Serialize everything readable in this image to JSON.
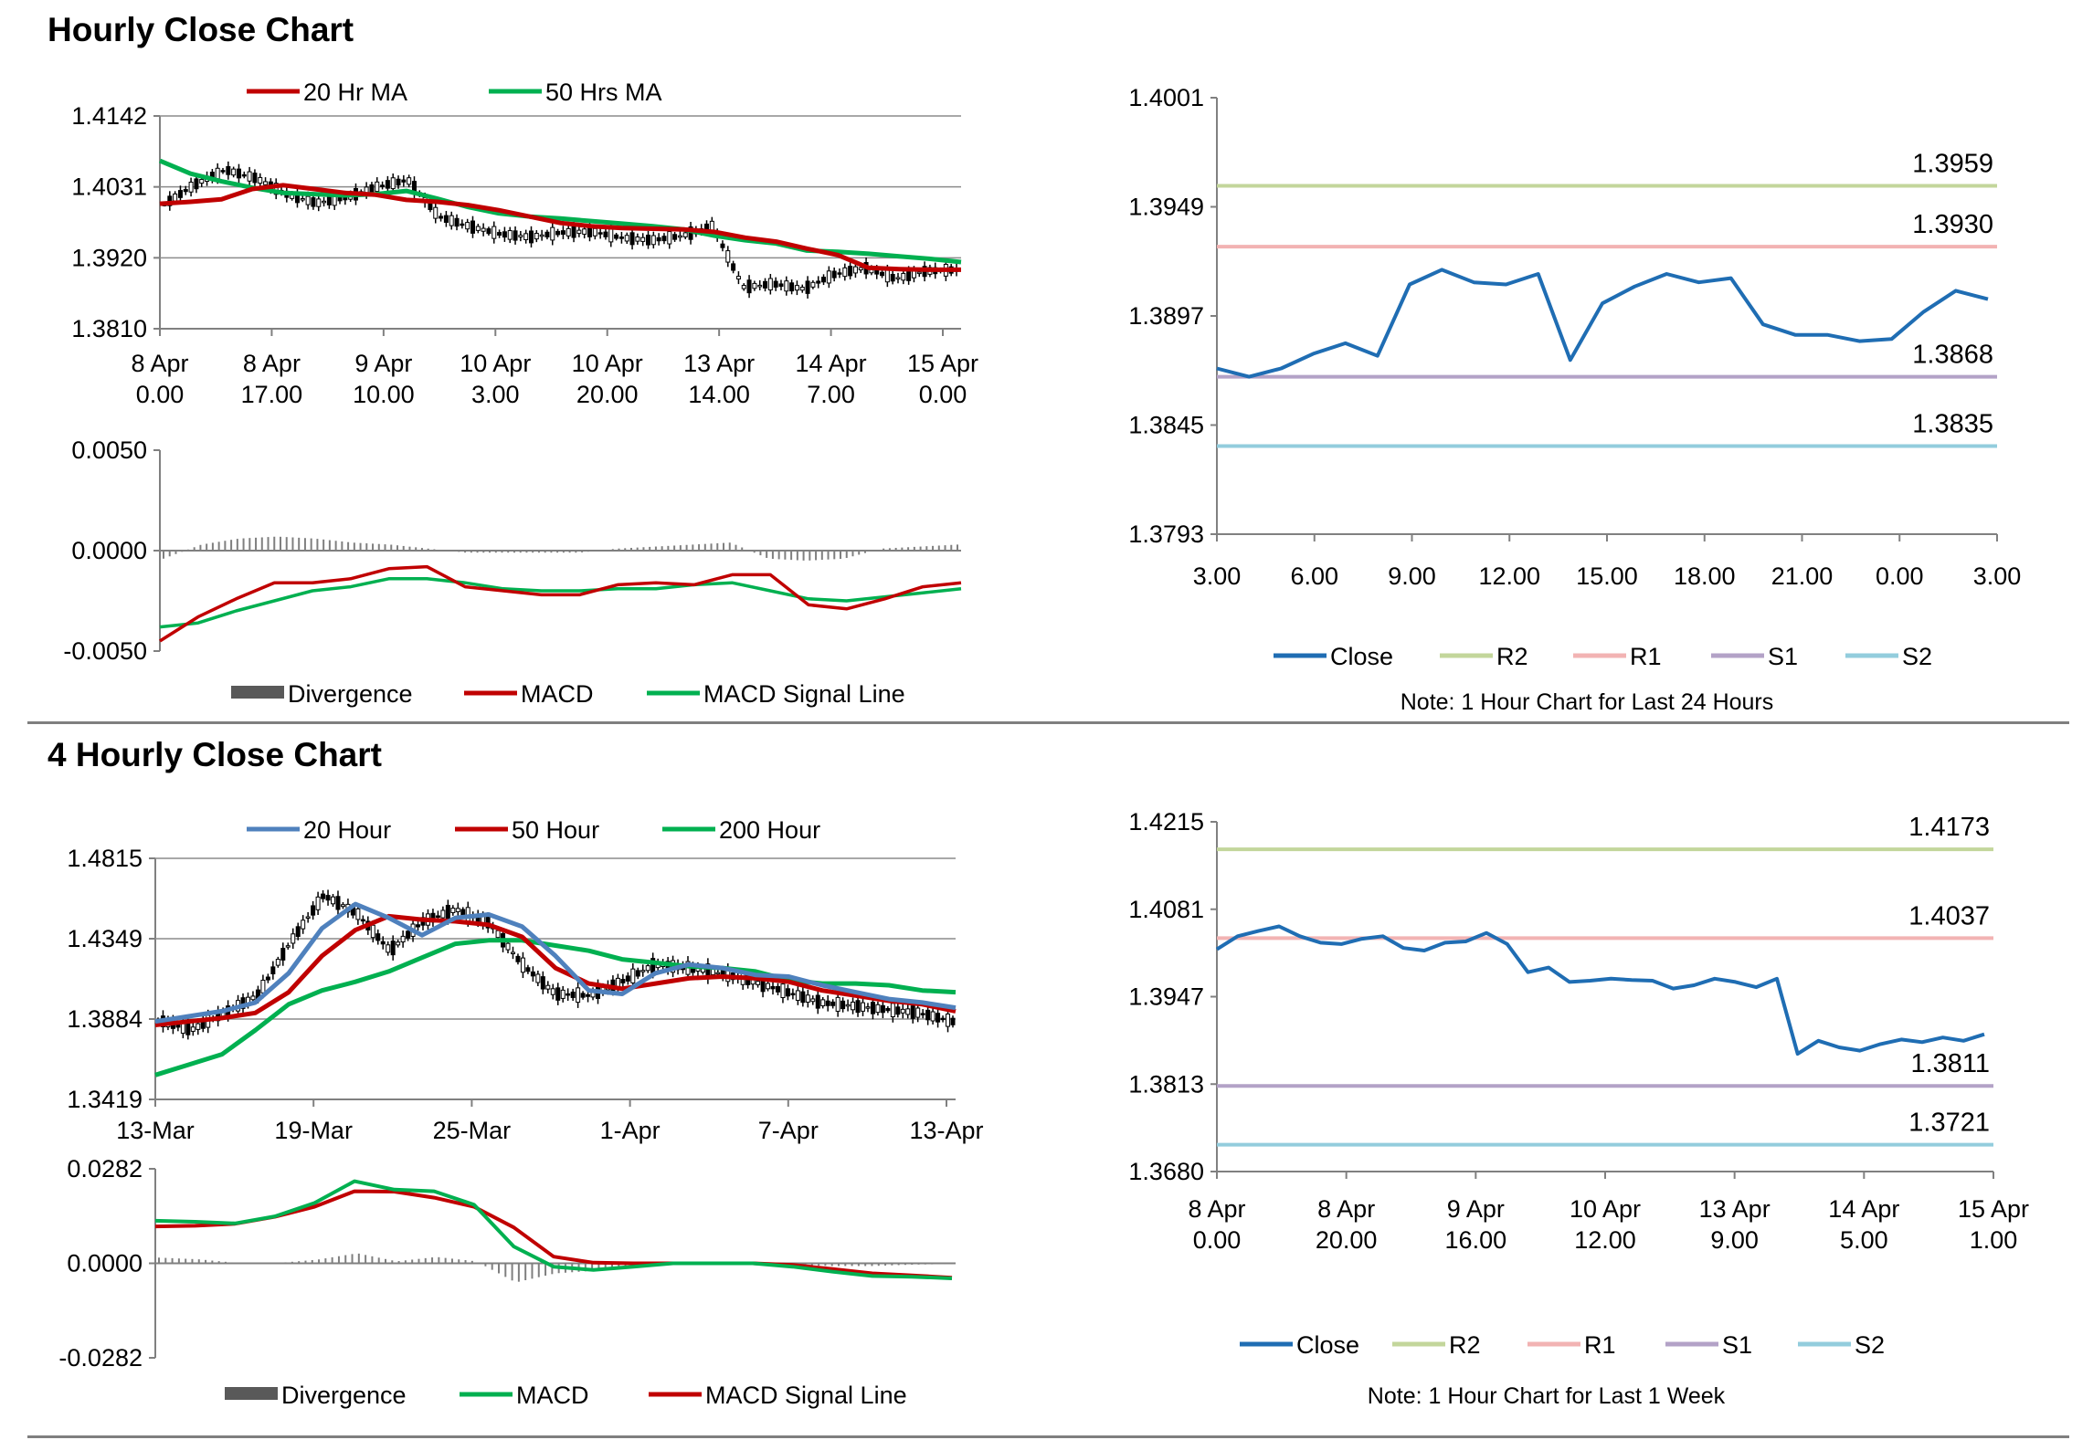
{
  "sections": {
    "hourly_title": "Hourly Close Chart",
    "four_hourly_title": "4 Hourly Close Chart"
  },
  "colors": {
    "red": "#c00000",
    "green": "#00b050",
    "blue": "#4f81bd",
    "close": "#1f6db3",
    "gray": "#7f7f7f",
    "r2": "#c3d69b",
    "r1": "#f2b3b3",
    "s1": "#b3a2c7",
    "s2": "#93cddd"
  },
  "chart_data": [
    {
      "id": "hourly-price",
      "type": "candlestick",
      "title": "",
      "yticks": [
        "1.4142",
        "1.4031",
        "1.3920",
        "1.3810"
      ],
      "ylim": [
        1.381,
        1.4142
      ],
      "xticks": [
        [
          "8 Apr",
          "0.00"
        ],
        [
          "8 Apr",
          "17.00"
        ],
        [
          "9 Apr",
          "10.00"
        ],
        [
          "10 Apr",
          "3.00"
        ],
        [
          "10 Apr",
          "20.00"
        ],
        [
          "13 Apr",
          "14.00"
        ],
        [
          "14 Apr",
          "7.00"
        ],
        [
          "15 Apr",
          "0.00"
        ]
      ],
      "legend": [
        "20 Hr MA",
        "50 Hrs MA"
      ],
      "series": [
        {
          "name": "20 Hr MA",
          "values": [
            1.4005,
            1.4008,
            1.4012,
            1.4028,
            1.4034,
            1.4028,
            1.4022,
            1.4019,
            1.4011,
            1.4008,
            1.4003,
            1.3995,
            1.3985,
            1.3975,
            1.397,
            1.3967,
            1.3966,
            1.3965,
            1.3961,
            1.3952,
            1.3946,
            1.3935,
            1.3925,
            1.3905,
            1.3903,
            1.3902,
            1.3902
          ]
        },
        {
          "name": "50 Hrs MA",
          "values": [
            1.4072,
            1.4052,
            1.404,
            1.403,
            1.4022,
            1.402,
            1.4018,
            1.402,
            1.4025,
            1.4013,
            1.4,
            1.399,
            1.3985,
            1.3982,
            1.3978,
            1.3974,
            1.397,
            1.3965,
            1.3955,
            1.3948,
            1.3943,
            1.3932,
            1.393,
            1.3927,
            1.3923,
            1.3919,
            1.3914
          ]
        },
        {
          "name": "Close",
          "values": [
            1.4004,
            1.4035,
            1.4058,
            1.4045,
            1.402,
            1.4006,
            1.4015,
            1.4032,
            1.4042,
            1.3985,
            1.397,
            1.3958,
            1.3953,
            1.396,
            1.3962,
            1.3952,
            1.3948,
            1.3955,
            1.397,
            1.3875,
            1.388,
            1.3872,
            1.3895,
            1.3905,
            1.3888,
            1.39,
            1.3902
          ]
        }
      ]
    },
    {
      "id": "hourly-macd",
      "type": "line",
      "yticks": [
        "0.0050",
        "0.0000",
        "-0.0050"
      ],
      "ylim": [
        -0.005,
        0.005
      ],
      "legend": [
        "Divergence",
        "MACD",
        "MACD Signal Line"
      ],
      "series": [
        {
          "name": "MACD",
          "values": [
            -0.0045,
            -0.0033,
            -0.0024,
            -0.0016,
            -0.0016,
            -0.0014,
            -0.0009,
            -0.0008,
            -0.0018,
            -0.002,
            -0.0022,
            -0.0022,
            -0.0017,
            -0.0016,
            -0.0017,
            -0.0012,
            -0.0012,
            -0.0027,
            -0.0029,
            -0.0024,
            -0.0018,
            -0.0016
          ]
        },
        {
          "name": "MACD Signal Line",
          "values": [
            -0.0038,
            -0.0036,
            -0.003,
            -0.0025,
            -0.002,
            -0.0018,
            -0.0014,
            -0.0014,
            -0.0016,
            -0.0019,
            -0.002,
            -0.002,
            -0.0019,
            -0.0019,
            -0.0017,
            -0.0016,
            -0.002,
            -0.0024,
            -0.0025,
            -0.0023,
            -0.0021,
            -0.0019
          ]
        },
        {
          "name": "Divergence",
          "values": [
            -0.0004,
            0.0003,
            0.0006,
            0.0007,
            0.0006,
            0.0004,
            0.0003,
            0.0001,
            -0.0001,
            -0.0001,
            -0.0001,
            -0.0001,
            0.0001,
            0.0002,
            0.0003,
            0.0004,
            -0.0004,
            -0.0005,
            -0.0004,
            0.0001,
            0.0002,
            0.0003
          ]
        }
      ]
    },
    {
      "id": "hourly-close-24h",
      "type": "line",
      "yticks": [
        "1.4001",
        "1.3949",
        "1.3897",
        "1.3845",
        "1.3793"
      ],
      "ylim": [
        1.3793,
        1.4001
      ],
      "xticks": [
        "3.00",
        "6.00",
        "9.00",
        "12.00",
        "15.00",
        "18.00",
        "21.00",
        "0.00",
        "3.00"
      ],
      "x": [
        3,
        4,
        5,
        6,
        7,
        8,
        9,
        10,
        11,
        12,
        13,
        14,
        15,
        16,
        17,
        18,
        19,
        20,
        21,
        22,
        23,
        24,
        25,
        26,
        27
      ],
      "series": [
        {
          "name": "Close",
          "values": [
            1.3872,
            1.3868,
            1.3872,
            1.3879,
            1.3884,
            1.3878,
            1.3912,
            1.3919,
            1.3913,
            1.3912,
            1.3917,
            1.3876,
            1.3903,
            1.3911,
            1.3917,
            1.3913,
            1.3915,
            1.3893,
            1.3888,
            1.3888,
            1.3885,
            1.3886,
            1.3899,
            1.3909,
            1.3905
          ]
        }
      ],
      "levels": [
        {
          "name": "R2",
          "value": 1.3959,
          "label": "1.3959"
        },
        {
          "name": "R1",
          "value": 1.393,
          "label": "1.3930"
        },
        {
          "name": "S1",
          "value": 1.3868,
          "label": "1.3868"
        },
        {
          "name": "S2",
          "value": 1.3835,
          "label": "1.3835"
        }
      ],
      "legend": [
        "Close",
        "R2",
        "R1",
        "S1",
        "S2"
      ],
      "note": "Note: 1 Hour Chart for Last 24 Hours"
    },
    {
      "id": "four-hourly-price",
      "type": "candlestick",
      "yticks": [
        "1.4815",
        "1.4349",
        "1.3884",
        "1.3419"
      ],
      "ylim": [
        1.3419,
        1.4815
      ],
      "xticks": [
        "13-Mar",
        "19-Mar",
        "25-Mar",
        "1-Apr",
        "7-Apr",
        "13-Apr"
      ],
      "legend": [
        "20 Hour",
        "50 Hour",
        "200 Hour"
      ],
      "series": [
        {
          "name": "20 Hour",
          "values": [
            1.387,
            1.39,
            1.393,
            1.398,
            1.415,
            1.441,
            1.455,
            1.447,
            1.437,
            1.447,
            1.449,
            1.442,
            1.425,
            1.405,
            1.403,
            1.415,
            1.42,
            1.418,
            1.414,
            1.413,
            1.408,
            1.404,
            1.4,
            1.398,
            1.395
          ]
        },
        {
          "name": "50 Hour",
          "values": [
            1.385,
            1.387,
            1.389,
            1.392,
            1.404,
            1.425,
            1.44,
            1.448,
            1.446,
            1.445,
            1.443,
            1.436,
            1.418,
            1.409,
            1.406,
            1.409,
            1.412,
            1.413,
            1.412,
            1.41,
            1.405,
            1.402,
            1.399,
            1.397,
            1.393
          ]
        },
        {
          "name": "200 Hour",
          "values": [
            1.356,
            1.362,
            1.368,
            1.382,
            1.397,
            1.405,
            1.41,
            1.416,
            1.424,
            1.432,
            1.434,
            1.434,
            1.431,
            1.428,
            1.423,
            1.421,
            1.419,
            1.418,
            1.416,
            1.411,
            1.409,
            1.409,
            1.408,
            1.405,
            1.404
          ]
        },
        {
          "name": "Close",
          "values": [
            1.388,
            1.382,
            1.392,
            1.402,
            1.433,
            1.46,
            1.45,
            1.428,
            1.445,
            1.452,
            1.444,
            1.42,
            1.403,
            1.402,
            1.41,
            1.42,
            1.418,
            1.415,
            1.41,
            1.404,
            1.398,
            1.396,
            1.394,
            1.392,
            1.387
          ]
        }
      ]
    },
    {
      "id": "four-hourly-macd",
      "type": "line",
      "yticks": [
        "0.0282",
        "0.0000",
        "-0.0282"
      ],
      "ylim": [
        -0.0282,
        0.0282
      ],
      "legend": [
        "Divergence",
        "MACD",
        "MACD Signal Line"
      ],
      "series": [
        {
          "name": "MACD",
          "values": [
            0.0127,
            0.0124,
            0.0119,
            0.014,
            0.018,
            0.0245,
            0.022,
            0.0215,
            0.0175,
            0.005,
            -0.001,
            -0.002,
            -0.001,
            0.0,
            0.0,
            0.0,
            -0.001,
            -0.0025,
            -0.0038,
            -0.004,
            -0.0045
          ]
        },
        {
          "name": "MACD Signal Line",
          "values": [
            0.011,
            0.0112,
            0.0118,
            0.0139,
            0.0169,
            0.0215,
            0.0214,
            0.0196,
            0.0169,
            0.0107,
            0.002,
            0.0002,
            0.0,
            0.0,
            0.0,
            0.0,
            -0.0005,
            -0.0017,
            -0.003,
            -0.0036,
            -0.0043
          ]
        },
        {
          "name": "Divergence",
          "values": [
            0.0017,
            0.0012,
            0.0001,
            0.0001,
            0.0011,
            0.003,
            0.0006,
            0.0019,
            0.0006,
            -0.0057,
            -0.003,
            -0.0022,
            -0.001,
            0.0,
            0.0,
            0.0,
            -0.0005,
            -0.0008,
            -0.0008,
            -0.0004,
            -0.0002
          ]
        }
      ]
    },
    {
      "id": "four-hourly-close-week",
      "type": "line",
      "yticks": [
        "1.4215",
        "1.4081",
        "1.3947",
        "1.3813",
        "1.3680"
      ],
      "ylim": [
        1.368,
        1.4215
      ],
      "xticks": [
        [
          "8 Apr",
          "0.00"
        ],
        [
          "8 Apr",
          "20.00"
        ],
        [
          "9 Apr",
          "16.00"
        ],
        [
          "10 Apr",
          "12.00"
        ],
        [
          "13 Apr",
          "9.00"
        ],
        [
          "14 Apr",
          "5.00"
        ],
        [
          "15 Apr",
          "1.00"
        ]
      ],
      "series": [
        {
          "name": "Close",
          "values": [
            1.402,
            1.404,
            1.4048,
            1.4055,
            1.404,
            1.403,
            1.4028,
            1.4036,
            1.404,
            1.4022,
            1.4018,
            1.403,
            1.4032,
            1.4045,
            1.4028,
            1.3985,
            1.3992,
            1.397,
            1.3972,
            1.3975,
            1.3973,
            1.3972,
            1.396,
            1.3965,
            1.3975,
            1.397,
            1.3962,
            1.3975,
            1.386,
            1.388,
            1.387,
            1.3865,
            1.3875,
            1.3882,
            1.3878,
            1.3885,
            1.388,
            1.389
          ]
        }
      ],
      "levels": [
        {
          "name": "R2",
          "value": 1.4173,
          "label": "1.4173"
        },
        {
          "name": "R1",
          "value": 1.4037,
          "label": "1.4037"
        },
        {
          "name": "S1",
          "value": 1.3811,
          "label": "1.3811"
        },
        {
          "name": "S2",
          "value": 1.3721,
          "label": "1.3721"
        }
      ],
      "legend": [
        "Close",
        "R2",
        "R1",
        "S1",
        "S2"
      ],
      "note": "Note: 1 Hour Chart for  Last 1 Week"
    }
  ]
}
